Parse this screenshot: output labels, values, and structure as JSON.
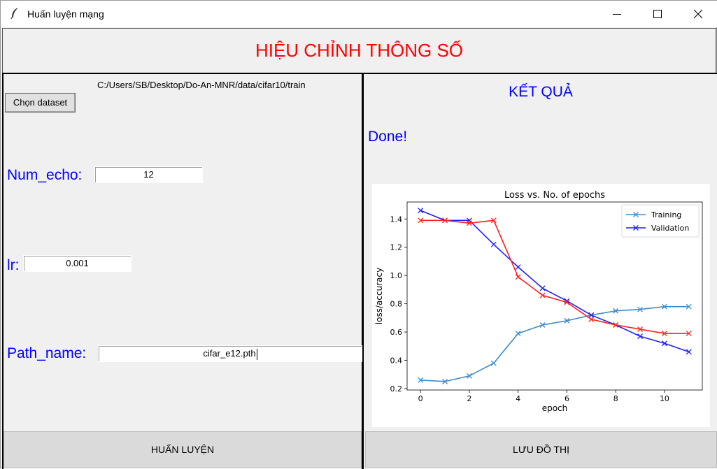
{
  "window": {
    "title": "Huấn luyện mạng",
    "controls": [
      "minimize",
      "maximize",
      "close"
    ]
  },
  "header": {
    "title": "HIỆU CHỈNH THÔNG SỐ",
    "color": "#ff0000"
  },
  "left": {
    "dataset_path": "C:/Users/SB/Desktop/Do-An-MNR/data/cifar10/train",
    "choose_dataset_label": "Chọn dataset",
    "num_echo": {
      "label": "Num_echo:",
      "value": "12"
    },
    "lr": {
      "label": "lr:",
      "value": "0.001"
    },
    "path_name": {
      "label": "Path_name:",
      "value": "cifar_e12.pth"
    },
    "train_button": "HUẤN LUYỆN"
  },
  "right": {
    "title": "KẾT QUẢ",
    "status": "Done!",
    "save_button": "LƯU ĐỒ THỊ"
  },
  "colors": {
    "label": "#0000ff",
    "header": "#ff0000"
  },
  "chart_data": {
    "type": "line",
    "title": "Loss vs. No. of epochs",
    "xlabel": "epoch",
    "ylabel": "loss/accuracy",
    "x": [
      0,
      1,
      2,
      3,
      4,
      5,
      6,
      7,
      8,
      9,
      10,
      11
    ],
    "xlim": [
      -0.55,
      11.55
    ],
    "ylim": [
      0.19,
      1.52
    ],
    "xticks": [
      0,
      2,
      4,
      6,
      8,
      10
    ],
    "yticks": [
      0.2,
      0.4,
      0.6,
      0.8,
      1.0,
      1.2,
      1.4
    ],
    "legend_position": "top-right",
    "grid": false,
    "series": [
      {
        "name": "Training",
        "color": "#3d8bc9",
        "values": [
          0.26,
          0.25,
          0.29,
          0.38,
          0.59,
          0.65,
          0.68,
          0.72,
          0.75,
          0.76,
          0.78,
          0.78
        ]
      },
      {
        "name": "Validation",
        "color": "#2020ff",
        "values": [
          1.46,
          1.39,
          1.39,
          1.22,
          1.06,
          0.91,
          0.82,
          0.72,
          0.65,
          0.57,
          0.52,
          0.46
        ]
      },
      {
        "color": "#ff2020",
        "values": [
          1.39,
          1.39,
          1.37,
          1.39,
          0.99,
          0.86,
          0.81,
          0.69,
          0.65,
          0.62,
          0.59,
          0.59
        ]
      }
    ]
  }
}
